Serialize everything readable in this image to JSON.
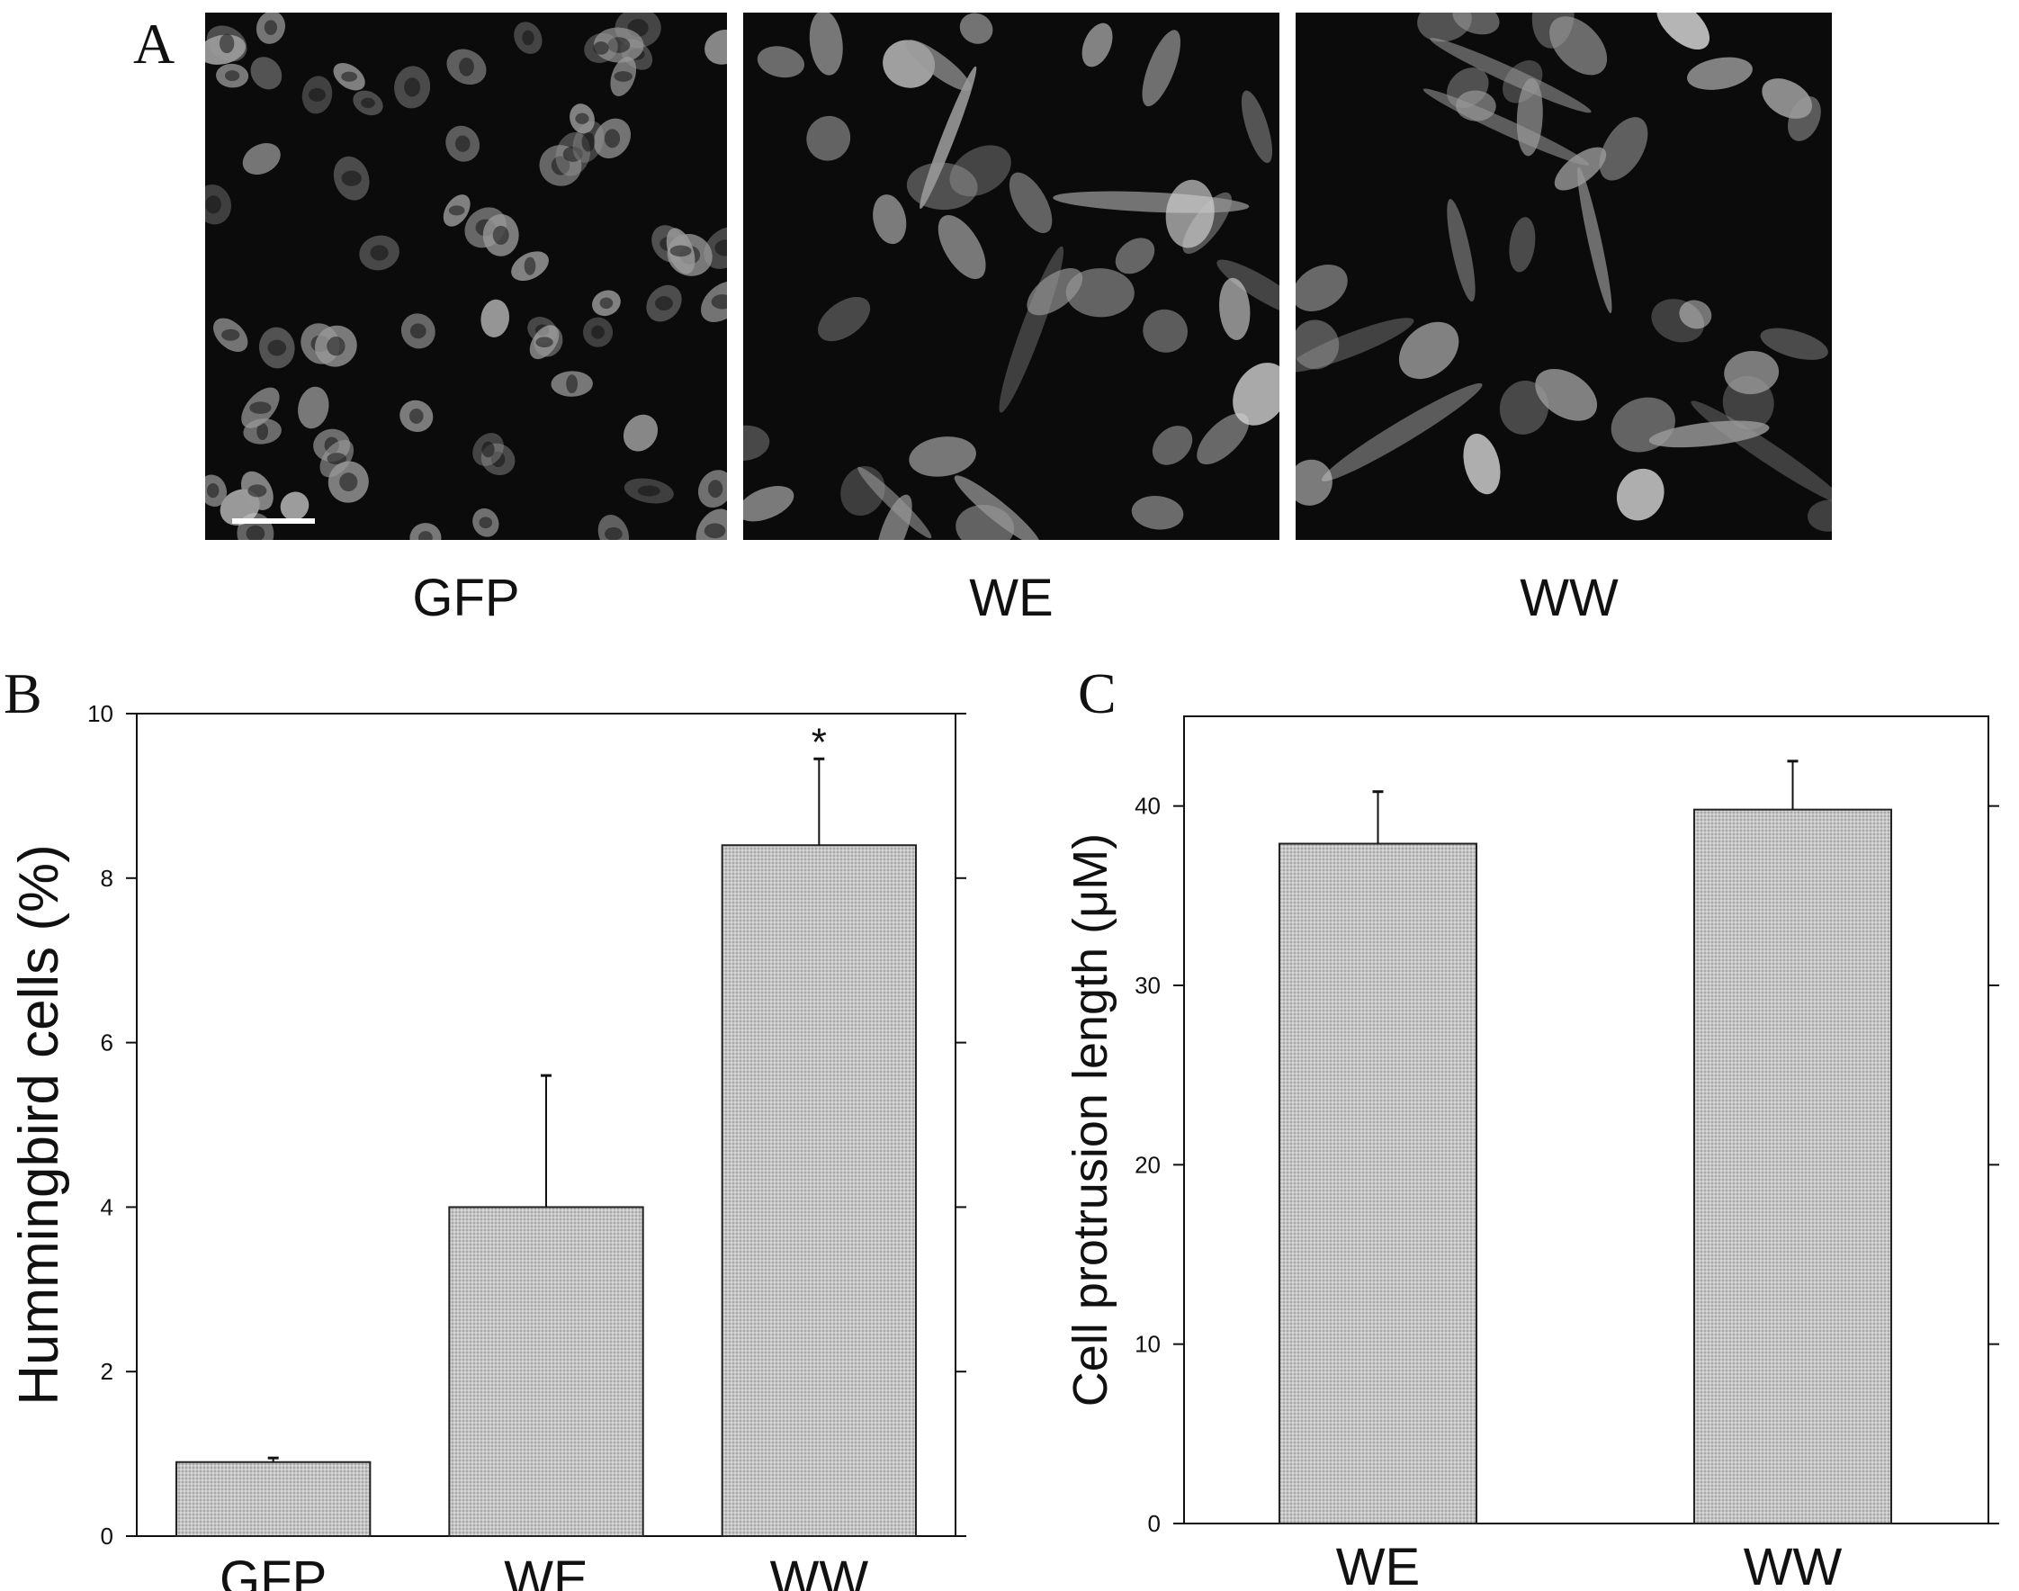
{
  "panels": {
    "a": {
      "letter": "A",
      "images": [
        {
          "caption": "GFP",
          "variant": "dense"
        },
        {
          "caption": "WE",
          "variant": "spread"
        },
        {
          "caption": "WW",
          "variant": "spread"
        }
      ],
      "scale_bar": true
    },
    "b": {
      "letter": "B"
    },
    "c": {
      "letter": "C"
    }
  },
  "colors": {
    "bar_fill": "#c8c8c8",
    "bar_stroke": "#222222",
    "micrograph_bg": "#0b0b0b",
    "cell": "#9a9a9a",
    "cell_bright": "#d4d4d4"
  },
  "chart_data": [
    {
      "type": "bar",
      "panel": "B",
      "categories": [
        "GFP",
        "WE",
        "WW"
      ],
      "values": [
        0.9,
        4.0,
        8.4
      ],
      "errors": [
        0.05,
        1.6,
        1.05
      ],
      "annotations": [
        "",
        "",
        "*"
      ],
      "ylabel": "Hummingbird cells (%)",
      "ylim": [
        0,
        10
      ],
      "yticks": [
        0,
        2,
        4,
        6,
        8,
        10
      ],
      "grid": false
    },
    {
      "type": "bar",
      "panel": "C",
      "categories": [
        "WE",
        "WW"
      ],
      "values": [
        37.9,
        39.8
      ],
      "errors": [
        2.9,
        2.7
      ],
      "ylabel": "Cell protrusion length (μM)",
      "ylim": [
        0,
        45
      ],
      "yticks": [
        0,
        10,
        20,
        30,
        40
      ],
      "grid": false
    }
  ]
}
